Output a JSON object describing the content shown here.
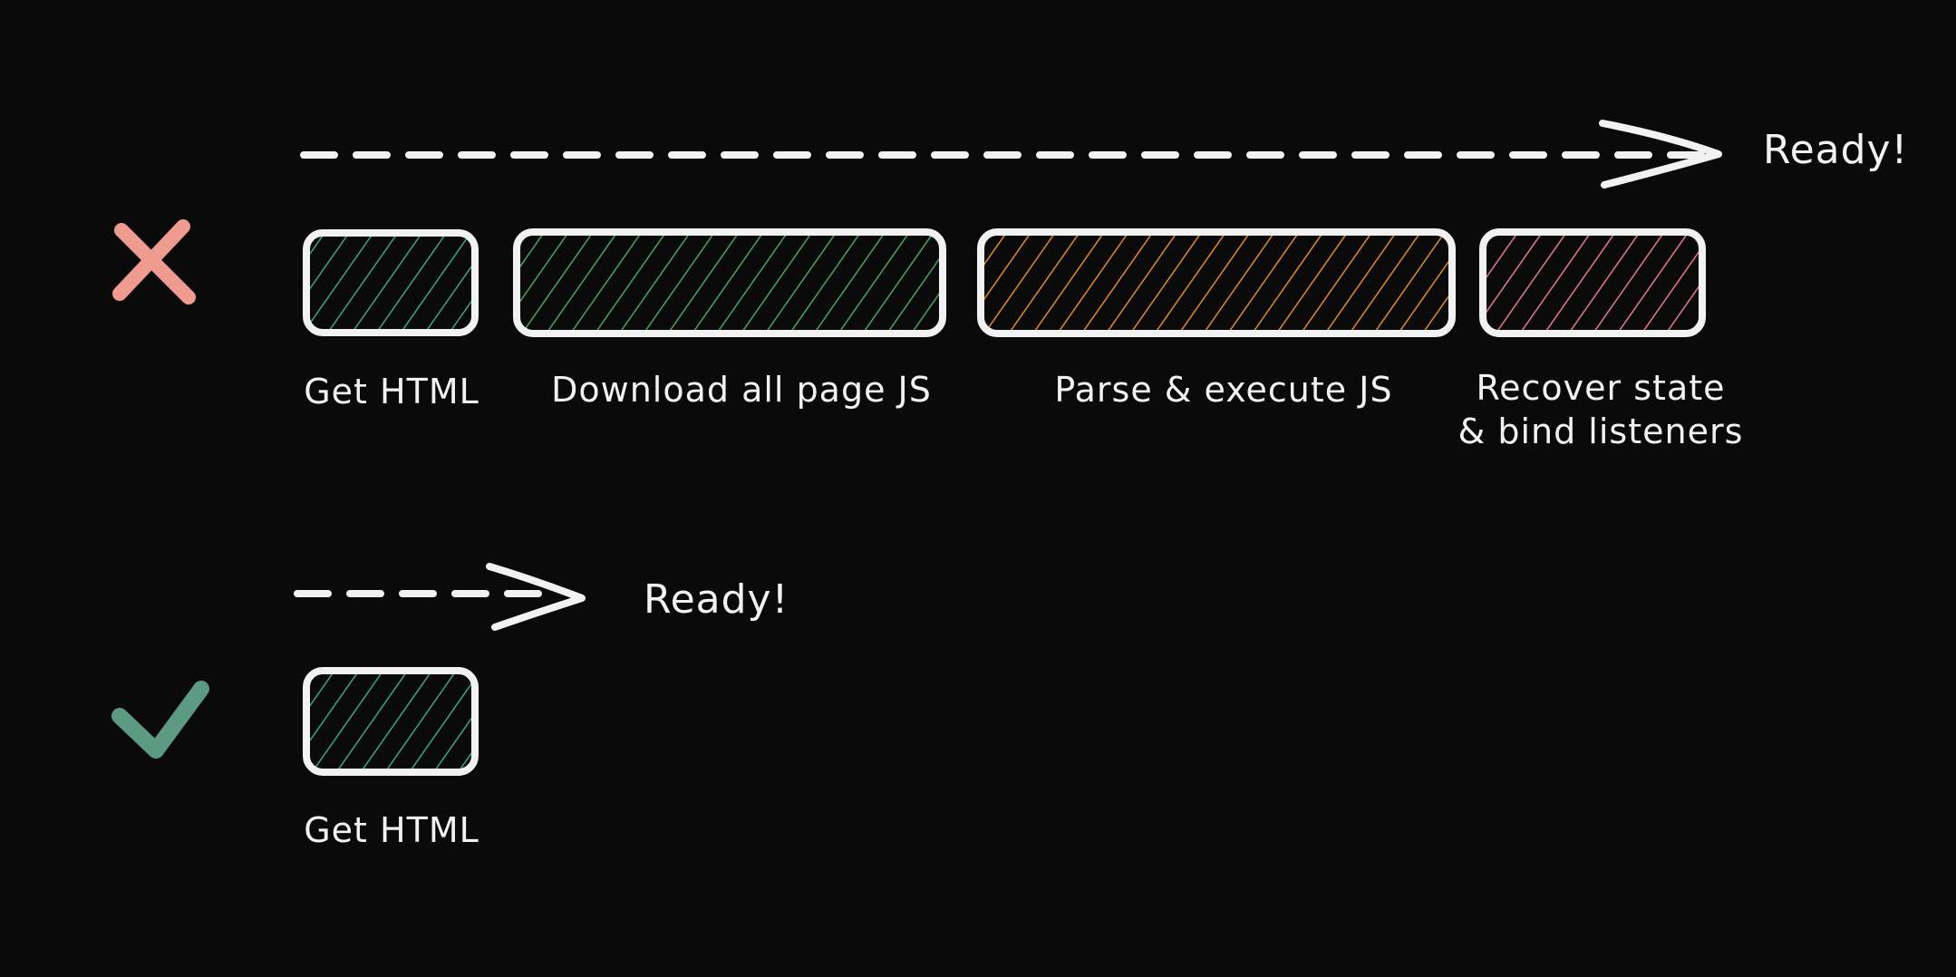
{
  "slow_path": {
    "status_icon": "cross-icon",
    "status_color": "#f09b8f",
    "ready_label": "Ready!",
    "steps": [
      {
        "label": "Get HTML",
        "color": "#3aa57e"
      },
      {
        "label": "Download all page JS",
        "color": "#46a45f"
      },
      {
        "label": "Parse & execute JS",
        "color": "#e08a2c"
      },
      {
        "label": "Recover state\n& bind listeners",
        "color": "#e6788a"
      }
    ]
  },
  "fast_path": {
    "status_icon": "checkmark-icon",
    "status_color": "#5c9a84",
    "ready_label": "Ready!",
    "steps": [
      {
        "label": "Get HTML",
        "color": "#3aa57e"
      }
    ]
  },
  "colors": {
    "background": "#0a0a0a",
    "stroke": "#f2f2f2"
  }
}
